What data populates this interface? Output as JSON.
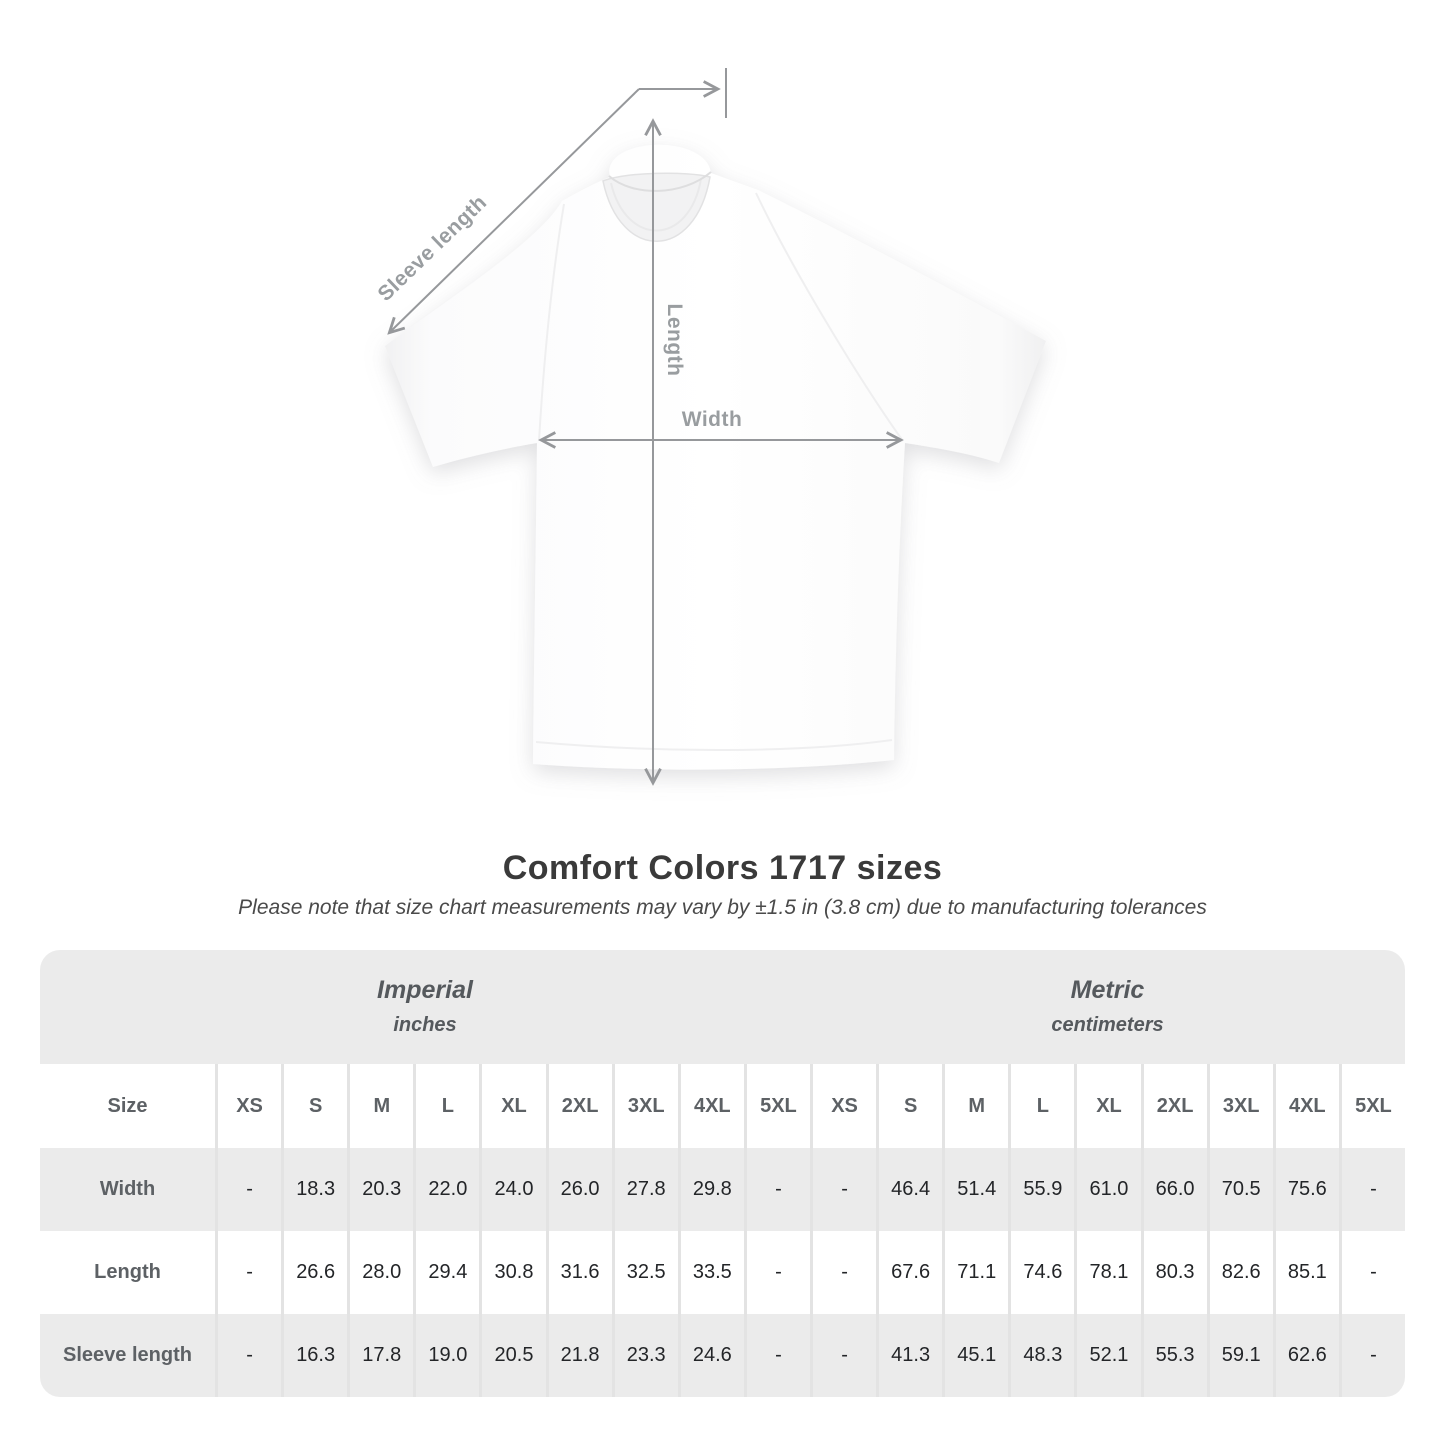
{
  "title": "Comfort Colors 1717 sizes",
  "subtitle": "Please note that size chart measurements may vary by ±1.5 in (3.8 cm) due to manufacturing tolerances",
  "diagram": {
    "sleeve_label": "Sleeve length",
    "length_label": "Length",
    "width_label": "Width"
  },
  "chart_data": {
    "type": "table",
    "title": "Comfort Colors 1717 sizes",
    "groups": [
      {
        "label": "Imperial",
        "units": "inches"
      },
      {
        "label": "Metric",
        "units": "centimeters"
      }
    ],
    "corner_header": "Size",
    "sizes": [
      "XS",
      "S",
      "M",
      "L",
      "XL",
      "2XL",
      "3XL",
      "4XL",
      "5XL"
    ],
    "rows": [
      {
        "label": "Width",
        "imperial": [
          "-",
          "18.3",
          "20.3",
          "22.0",
          "24.0",
          "26.0",
          "27.8",
          "29.8",
          "-"
        ],
        "metric": [
          "-",
          "46.4",
          "51.4",
          "55.9",
          "61.0",
          "66.0",
          "70.5",
          "75.6",
          "-"
        ]
      },
      {
        "label": "Length",
        "imperial": [
          "-",
          "26.6",
          "28.0",
          "29.4",
          "30.8",
          "31.6",
          "32.5",
          "33.5",
          "-"
        ],
        "metric": [
          "-",
          "67.6",
          "71.1",
          "74.6",
          "78.1",
          "80.3",
          "82.6",
          "85.1",
          "-"
        ]
      },
      {
        "label": "Sleeve length",
        "imperial": [
          "-",
          "16.3",
          "17.8",
          "19.0",
          "20.5",
          "21.8",
          "23.3",
          "24.6",
          "-"
        ],
        "metric": [
          "-",
          "41.3",
          "45.1",
          "48.3",
          "52.1",
          "55.3",
          "59.1",
          "62.6",
          "-"
        ]
      }
    ]
  },
  "colors": {
    "table_band_gray": "#ebebeb",
    "separator_gray": "#e3e3e3",
    "header_text_gray": "#5d6165",
    "value_text": "#232528",
    "annotation_gray": "#999da0",
    "title_text": "#3a3a3a"
  }
}
